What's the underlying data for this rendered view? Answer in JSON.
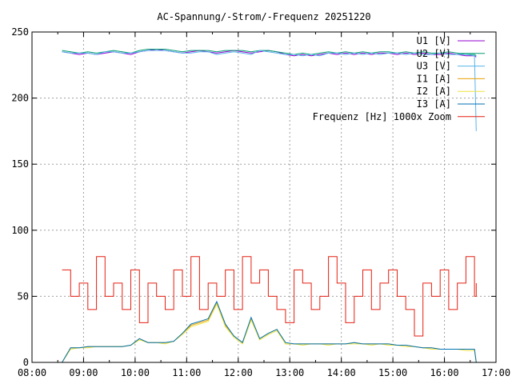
{
  "chart_data": {
    "type": "line",
    "title": "AC-Spannung/-Strom/-Frequenz 20251220",
    "xlabel": "",
    "ylabel": "",
    "xlim": [
      "08:00",
      "17:00"
    ],
    "ylim": [
      0,
      250
    ],
    "x_ticks": [
      "08:00",
      "09:00",
      "10:00",
      "11:00",
      "12:00",
      "13:00",
      "14:00",
      "15:00",
      "16:00",
      "17:00"
    ],
    "y_ticks": [
      "0",
      "50",
      "100",
      "150",
      "200",
      "250"
    ],
    "grid": true,
    "legend_position": "top-right",
    "x": [
      "08:35",
      "08:45",
      "08:55",
      "09:05",
      "09:15",
      "09:25",
      "09:35",
      "09:45",
      "09:55",
      "10:05",
      "10:15",
      "10:25",
      "10:35",
      "10:45",
      "10:55",
      "11:05",
      "11:15",
      "11:25",
      "11:35",
      "11:45",
      "11:55",
      "12:05",
      "12:15",
      "12:25",
      "12:35",
      "12:45",
      "12:55",
      "13:05",
      "13:15",
      "13:25",
      "13:35",
      "13:45",
      "13:55",
      "14:05",
      "14:15",
      "14:25",
      "14:35",
      "14:45",
      "14:55",
      "15:05",
      "15:15",
      "15:25",
      "15:35",
      "15:45",
      "15:55",
      "16:05",
      "16:15",
      "16:25",
      "16:35",
      "16:37"
    ],
    "series": [
      {
        "name": "U1 [V]",
        "color": "#9400d3",
        "values": [
          235,
          234,
          233,
          234,
          233,
          234,
          235,
          234,
          233,
          235,
          236,
          237,
          236,
          235,
          234,
          235,
          236,
          235,
          234,
          235,
          236,
          235,
          234,
          235,
          236,
          235,
          233,
          232,
          233,
          232,
          233,
          234,
          233,
          234,
          233,
          234,
          233,
          234,
          234,
          233,
          234,
          233,
          234,
          233,
          233,
          234,
          233,
          232,
          232,
          231
        ]
      },
      {
        "name": "U2 [V]",
        "color": "#009e73",
        "values": [
          236,
          235,
          234,
          235,
          234,
          235,
          236,
          235,
          234,
          236,
          237,
          237,
          237,
          236,
          235,
          236,
          236,
          236,
          235,
          236,
          236,
          236,
          235,
          236,
          236,
          235,
          234,
          233,
          234,
          233,
          234,
          235,
          234,
          235,
          234,
          235,
          234,
          235,
          235,
          234,
          235,
          234,
          235,
          234,
          234,
          235,
          234,
          233,
          233,
          232
        ]
      },
      {
        "name": "U3 [V]",
        "color": "#56b4e9",
        "values": [
          235,
          234,
          234,
          234,
          233,
          235,
          235,
          234,
          234,
          235,
          236,
          236,
          236,
          235,
          234,
          234,
          235,
          235,
          233,
          234,
          235,
          234,
          233,
          236,
          235,
          234,
          233,
          233,
          232,
          233,
          232,
          234,
          234,
          233,
          234,
          233,
          234,
          233,
          234,
          234,
          233,
          234,
          233,
          233,
          234,
          233,
          233,
          233,
          232,
          175
        ]
      },
      {
        "name": "I1 [A]",
        "color": "#e69f00",
        "values": [
          0,
          11,
          11,
          12,
          12,
          12,
          12,
          12,
          13,
          18,
          15,
          15,
          15,
          16,
          22,
          28,
          30,
          32,
          45,
          28,
          20,
          15,
          33,
          18,
          22,
          25,
          14,
          14,
          14,
          14,
          14,
          14,
          14,
          14,
          15,
          14,
          14,
          14,
          14,
          13,
          13,
          12,
          11,
          11,
          10,
          10,
          10,
          10,
          10,
          0
        ]
      },
      {
        "name": "I2 [A]",
        "color": "#f0e442",
        "values": [
          0,
          10,
          11,
          11,
          12,
          12,
          12,
          12,
          13,
          17,
          15,
          15,
          14,
          16,
          21,
          27,
          29,
          31,
          44,
          27,
          19,
          14,
          32,
          17,
          21,
          24,
          14,
          14,
          13,
          14,
          14,
          13,
          14,
          14,
          14,
          14,
          13,
          14,
          13,
          13,
          12,
          12,
          11,
          10,
          10,
          10,
          10,
          9,
          9,
          0
        ]
      },
      {
        "name": "I3 [A]",
        "color": "#0072b2",
        "values": [
          0,
          11,
          11,
          12,
          12,
          12,
          12,
          12,
          13,
          18,
          15,
          15,
          15,
          16,
          22,
          29,
          31,
          33,
          46,
          29,
          20,
          15,
          34,
          18,
          22,
          25,
          15,
          14,
          14,
          14,
          14,
          14,
          14,
          14,
          15,
          14,
          14,
          14,
          14,
          13,
          13,
          12,
          11,
          11,
          10,
          10,
          10,
          10,
          10,
          0
        ]
      },
      {
        "name": "Frequenz [Hz] 1000x Zoom",
        "color": "#e51e10",
        "values": [
          70,
          50,
          60,
          40,
          80,
          50,
          60,
          40,
          70,
          30,
          60,
          50,
          40,
          70,
          50,
          80,
          40,
          60,
          50,
          70,
          40,
          80,
          60,
          70,
          50,
          40,
          30,
          70,
          60,
          40,
          50,
          80,
          60,
          30,
          50,
          70,
          40,
          60,
          70,
          50,
          40,
          20,
          60,
          50,
          70,
          40,
          60,
          80,
          50,
          60
        ]
      }
    ]
  }
}
